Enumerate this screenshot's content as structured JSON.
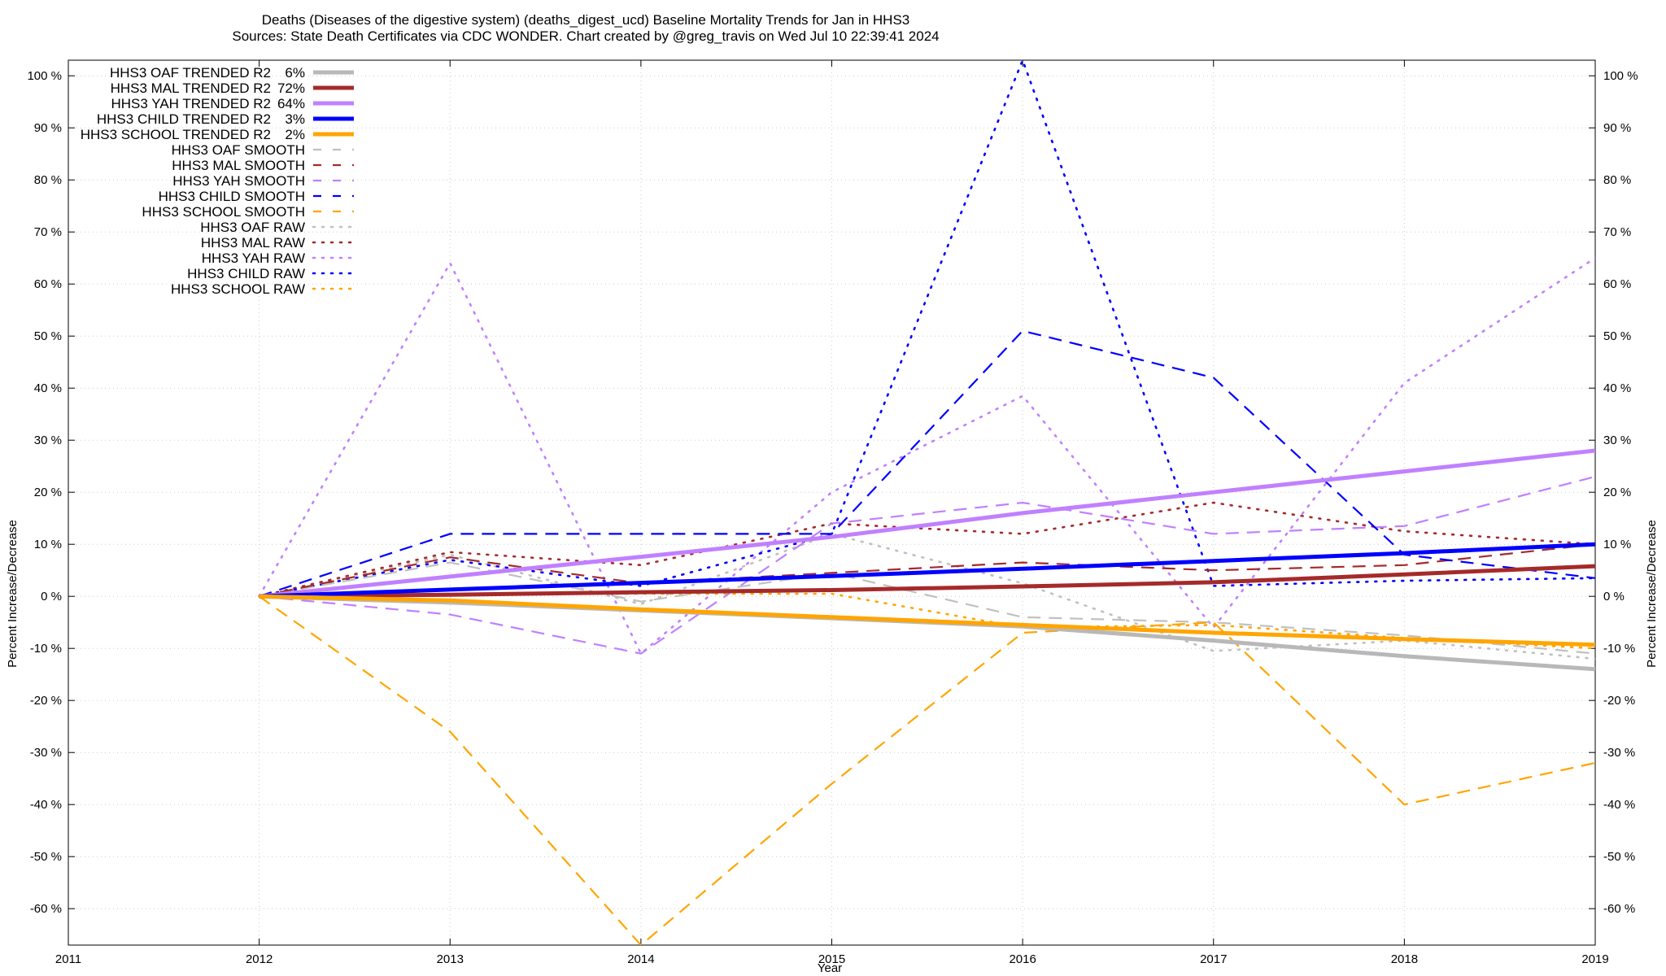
{
  "chart_data": {
    "type": "line",
    "title": "Deaths (Diseases of the digestive system) (deaths_digest_ucd)  Baseline Mortality Trends for Jan in HHS3",
    "subtitle": "Sources: State Death Certificates via CDC WONDER.               Chart created by @greg_travis on Wed Jul 10 22:39:41 2024",
    "xlabel": "Year",
    "ylabel": "Percent Increase/Decrease",
    "y2label": "Percent Increase/Decrease",
    "xlim": [
      2011,
      2019
    ],
    "ylim": [
      -67,
      103
    ],
    "x_ticks": [
      "2011",
      "2012",
      "2013",
      "2014",
      "2015",
      "2016",
      "2017",
      "2018",
      "2019"
    ],
    "y_ticks": [
      "100 %",
      "90 %",
      "80 %",
      "70 %",
      "60 %",
      "50 %",
      "40 %",
      "30 %",
      "20 %",
      "10 %",
      "0 %",
      "-10 %",
      "-20 %",
      "-30 %",
      "-40 %",
      "-50 %",
      "-60 %"
    ],
    "grid": true,
    "legend_position": "top-left",
    "x": [
      2012,
      2013,
      2014,
      2015,
      2016,
      2017,
      2018,
      2019
    ],
    "series": [
      {
        "name": "HHS3 OAF TRENDED R2",
        "r2": "6%",
        "style": "solid",
        "color": "#b8b8b8",
        "values": [
          0,
          -1.2,
          -2.7,
          -4.2,
          -5.8,
          -8.5,
          -11.5,
          -14
        ]
      },
      {
        "name": "HHS3 MAL TRENDED R2",
        "r2": "72%",
        "style": "solid",
        "color": "#a52a2a",
        "values": [
          0,
          0.3,
          0.8,
          1.2,
          1.9,
          2.7,
          4.2,
          5.8
        ]
      },
      {
        "name": "HHS3 YAH TRENDED R2",
        "r2": "64%",
        "style": "solid",
        "color": "#c080ff",
        "values": [
          0,
          3.8,
          7.6,
          11.4,
          16.0,
          20.0,
          24.0,
          28.0
        ]
      },
      {
        "name": "HHS3 CHILD TRENDED R2",
        "r2": "3%",
        "style": "solid",
        "color": "#0000ff",
        "values": [
          0,
          1.3,
          2.6,
          3.9,
          5.3,
          6.8,
          8.3,
          10.0
        ]
      },
      {
        "name": "HHS3 SCHOOL TRENDED R2",
        "r2": "2%",
        "style": "solid",
        "color": "#ffa500",
        "values": [
          0,
          -0.8,
          -2.5,
          -4.0,
          -5.5,
          -7.0,
          -8.2,
          -9.3
        ]
      },
      {
        "name": "HHS3 OAF SMOOTH",
        "r2": "",
        "style": "dashed",
        "color": "#c0c0c0",
        "values": [
          0,
          6.5,
          -1,
          4.5,
          -4,
          -5,
          -7.5,
          -11
        ]
      },
      {
        "name": "HHS3 MAL SMOOTH",
        "r2": "",
        "style": "dashed",
        "color": "#a52a2a",
        "values": [
          0,
          7.5,
          2.5,
          4.5,
          6.5,
          5,
          6,
          10
        ]
      },
      {
        "name": "HHS3 YAH SMOOTH",
        "r2": "",
        "style": "dashed",
        "color": "#c080ff",
        "values": [
          0,
          -3.5,
          -11,
          14,
          18,
          12,
          13.5,
          23
        ]
      },
      {
        "name": "HHS3 CHILD SMOOTH",
        "r2": "",
        "style": "dashed",
        "color": "#0000ff",
        "values": [
          0,
          12,
          12,
          12,
          51,
          42,
          8,
          3.5
        ]
      },
      {
        "name": "HHS3 SCHOOL SMOOTH",
        "r2": "",
        "style": "dashed",
        "color": "#ffa500",
        "values": [
          0,
          -26,
          -67,
          -36,
          -7,
          -5,
          -40,
          -32
        ]
      },
      {
        "name": "HHS3 OAF RAW",
        "r2": "",
        "style": "dotted",
        "color": "#c0c0c0",
        "values": [
          0,
          8,
          -1.5,
          12,
          2.5,
          -10.5,
          -8.5,
          -12
        ]
      },
      {
        "name": "HHS3 MAL RAW",
        "r2": "",
        "style": "dotted",
        "color": "#a52a2a",
        "values": [
          0,
          8.5,
          6,
          14,
          12,
          18,
          12.5,
          10
        ]
      },
      {
        "name": "HHS3 YAH RAW",
        "r2": "",
        "style": "dotted",
        "color": "#c080ff",
        "values": [
          0,
          64,
          -11,
          20,
          38.5,
          -6,
          41,
          65
        ]
      },
      {
        "name": "HHS3 CHILD RAW",
        "r2": "",
        "style": "dotted",
        "color": "#0000ff",
        "values": [
          0,
          7,
          2,
          12,
          103,
          2,
          3,
          3.5
        ]
      },
      {
        "name": "HHS3 SCHOOL RAW",
        "r2": "",
        "style": "dotted",
        "color": "#ffa500",
        "values": [
          0,
          0.5,
          0.5,
          0.5,
          -6,
          -5.5,
          -8,
          -10
        ]
      }
    ]
  }
}
